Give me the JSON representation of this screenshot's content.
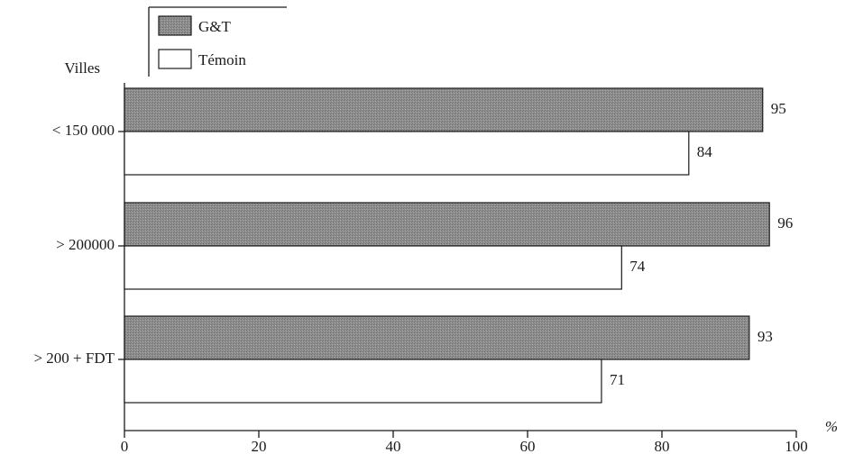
{
  "chart_data": {
    "type": "bar",
    "orientation": "horizontal",
    "ylabel": "Villes",
    "xlabel": "%",
    "xlim": [
      0,
      100
    ],
    "xticks": [
      0,
      20,
      40,
      60,
      80,
      100
    ],
    "categories": [
      "< 150 000",
      "> 200000",
      "> 200 +  FDT"
    ],
    "series": [
      {
        "name": "G&T",
        "values": [
          95,
          96,
          93
        ],
        "color": "#8c8c8c"
      },
      {
        "name": "Témoin",
        "values": [
          84,
          74,
          71
        ],
        "color": "#ffffff"
      }
    ],
    "legend_position": "top-left",
    "grid": false
  }
}
